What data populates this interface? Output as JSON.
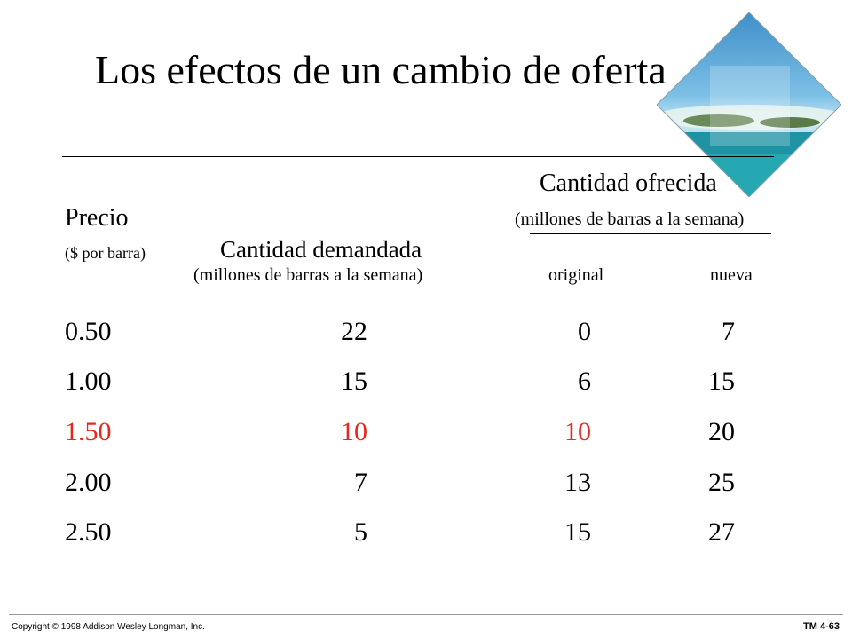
{
  "slide": {
    "title": "Los efectos de un cambio de oferta"
  },
  "header": {
    "supply_label": "Cantidad ofrecida",
    "supply_units": "(millones de barras a la semana)",
    "price_label": "Precio",
    "price_units": "($ por barra)",
    "demand_label": "Cantidad demandada",
    "demand_units": "(millones de barras a la semana)",
    "original_label": "original",
    "new_label": "nueva"
  },
  "table": {
    "rows": [
      {
        "price": "0.50",
        "demanded": "22",
        "original": "0",
        "new": "7",
        "highlight": false
      },
      {
        "price": "1.00",
        "demanded": "15",
        "original": "6",
        "new": "15",
        "highlight": false
      },
      {
        "price": "1.50",
        "demanded": "10",
        "original": "10",
        "new": "20",
        "highlight": true
      },
      {
        "price": "2.00",
        "demanded": "7",
        "original": "13",
        "new": "25",
        "highlight": false
      },
      {
        "price": "2.50",
        "demanded": "5",
        "original": "15",
        "new": "27",
        "highlight": false
      }
    ]
  },
  "footer": {
    "copyright": "Copyright © 1998 Addison Wesley Longman, Inc.",
    "slide_number": "TM 4-63"
  },
  "colors": {
    "highlight": "#e8261d"
  }
}
